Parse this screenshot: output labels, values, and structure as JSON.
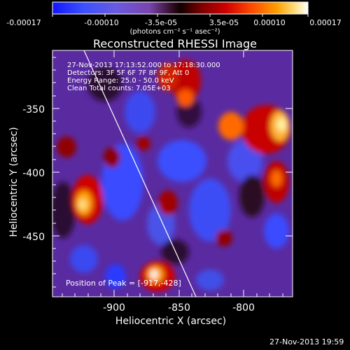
{
  "colorbar": {
    "colors": [
      "#1a1aff",
      "#4060ff",
      "#6a55dd",
      "#7a48b8",
      "#6a2a6a",
      "#2a0000",
      "#7a0000",
      "#c80000",
      "#ff3000",
      "#ff8a00",
      "#ffd060",
      "#ffffff"
    ],
    "tick_labels": [
      "-0.00017",
      "-0.00010",
      "-3.5e-05",
      "3.5e-05",
      "0.00010",
      "0.00017"
    ],
    "units": "(photons cm⁻² s⁻¹ asec⁻²)"
  },
  "title": "Reconstructed RHESSI Image",
  "info_lines": [
    "27-Nov-2013 17:13:52.000 to 17:18:30.000",
    "Detectors: 3F 5F 6F 7F 8F 9F, Att 0",
    "Energy Range: 25.0 - 50.0 keV",
    "Clean    Total counts: 7.05E+03"
  ],
  "axes": {
    "xlabel": "Heliocentric X (arcsec)",
    "ylabel": "Heliocentric Y (arcsec)",
    "xticks": [
      "-900",
      "-850",
      "-800"
    ],
    "yticks": [
      "-350",
      "-400",
      "-450"
    ]
  },
  "peak_text": "Position of Peak = [-917,-428]",
  "timestamp": "27-Nov-2013 19:59"
}
